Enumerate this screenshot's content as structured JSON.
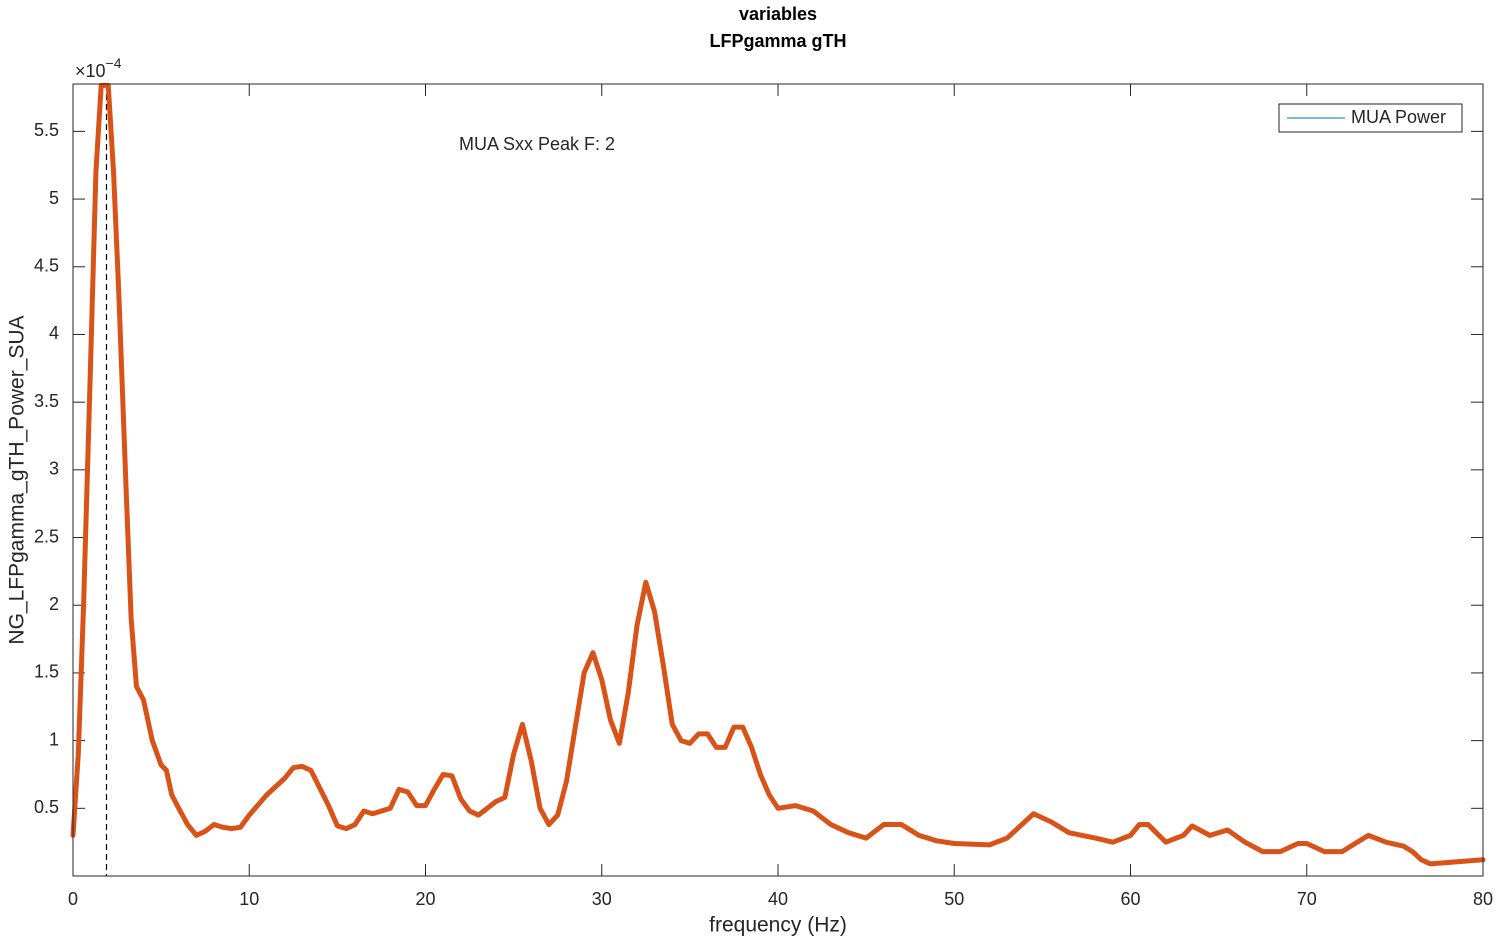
{
  "chart_data": {
    "type": "line",
    "title": [
      "variables",
      "LFPgamma gTH"
    ],
    "xlabel": "frequency (Hz)",
    "ylabel": "NG_LFPgamma_gTH_Power_SUA",
    "y_multiplier": {
      "base": "×10",
      "exponent": "−4"
    },
    "annotation": "MUA Sxx Peak F: 2",
    "vline_x": 1.9,
    "legend": "upper right",
    "legend_color": "#0072bd",
    "x": [
      0,
      0.3,
      0.6,
      1.0,
      1.3,
      1.6,
      2.0,
      2.3,
      2.6,
      3.0,
      3.3,
      3.6,
      4.0,
      4.5,
      5.0,
      5.3,
      5.6,
      6.0,
      6.5,
      7.0,
      7.5,
      8.0,
      8.5,
      9.0,
      9.5,
      10.0,
      11.0,
      12.0,
      12.5,
      13.0,
      13.5,
      14.0,
      14.5,
      15.0,
      15.5,
      16.0,
      16.5,
      17.0,
      18.0,
      18.5,
      19.0,
      19.5,
      20.0,
      20.5,
      21.0,
      21.5,
      22.0,
      22.5,
      23.0,
      24.0,
      24.5,
      25.0,
      25.5,
      26.0,
      26.5,
      27.0,
      27.5,
      28.0,
      28.5,
      29.0,
      29.5,
      30.0,
      30.5,
      31.0,
      31.5,
      32.0,
      32.5,
      33.0,
      33.5,
      34.0,
      34.5,
      35.0,
      35.5,
      36.0,
      36.5,
      37.0,
      37.5,
      38.0,
      38.5,
      39.0,
      39.5,
      40.0,
      41.0,
      42.0,
      43.0,
      44.0,
      45.0,
      46.0,
      47.0,
      48.0,
      49.0,
      50.0,
      52.0,
      53.0,
      54.0,
      54.5,
      55.5,
      56.5,
      58.0,
      59.0,
      60.0,
      60.5,
      61.0,
      62.0,
      63.0,
      63.5,
      64.5,
      65.5,
      66.5,
      67.5,
      68.5,
      69.5,
      70.0,
      71.0,
      72.0,
      73.0,
      73.5,
      74.5,
      75.5,
      76.0,
      76.5,
      77.0,
      78.0,
      79.0,
      80.0
    ],
    "series": [
      {
        "name": "MUA Power",
        "color": "#d95319",
        "values": [
          0.3,
          0.9,
          2.0,
          3.8,
          5.2,
          5.84,
          5.84,
          5.2,
          4.3,
          2.9,
          1.9,
          1.4,
          1.3,
          1.0,
          0.82,
          0.78,
          0.6,
          0.5,
          0.38,
          0.3,
          0.33,
          0.38,
          0.36,
          0.35,
          0.36,
          0.45,
          0.6,
          0.72,
          0.8,
          0.81,
          0.78,
          0.65,
          0.52,
          0.37,
          0.35,
          0.38,
          0.48,
          0.46,
          0.5,
          0.64,
          0.62,
          0.52,
          0.52,
          0.64,
          0.75,
          0.74,
          0.57,
          0.48,
          0.45,
          0.55,
          0.58,
          0.9,
          1.12,
          0.85,
          0.5,
          0.38,
          0.45,
          0.7,
          1.1,
          1.5,
          1.65,
          1.45,
          1.15,
          0.98,
          1.35,
          1.85,
          2.17,
          1.95,
          1.55,
          1.12,
          1.0,
          0.98,
          1.05,
          1.05,
          0.95,
          0.95,
          1.1,
          1.1,
          0.95,
          0.75,
          0.6,
          0.5,
          0.52,
          0.48,
          0.38,
          0.32,
          0.28,
          0.38,
          0.38,
          0.3,
          0.26,
          0.24,
          0.23,
          0.28,
          0.4,
          0.46,
          0.4,
          0.32,
          0.28,
          0.25,
          0.3,
          0.38,
          0.38,
          0.25,
          0.3,
          0.37,
          0.3,
          0.34,
          0.25,
          0.18,
          0.18,
          0.24,
          0.24,
          0.18,
          0.18,
          0.26,
          0.3,
          0.25,
          0.22,
          0.18,
          0.12,
          0.09,
          0.1,
          0.11,
          0.12
        ]
      }
    ],
    "xlim": [
      0,
      80
    ],
    "xticks": [
      0,
      10,
      20,
      30,
      40,
      50,
      60,
      70,
      80
    ],
    "ylim": [
      0,
      5.85
    ],
    "yticks": [
      0.5,
      1,
      1.5,
      2,
      2.5,
      3,
      3.5,
      4,
      4.5,
      5,
      5.5
    ]
  }
}
